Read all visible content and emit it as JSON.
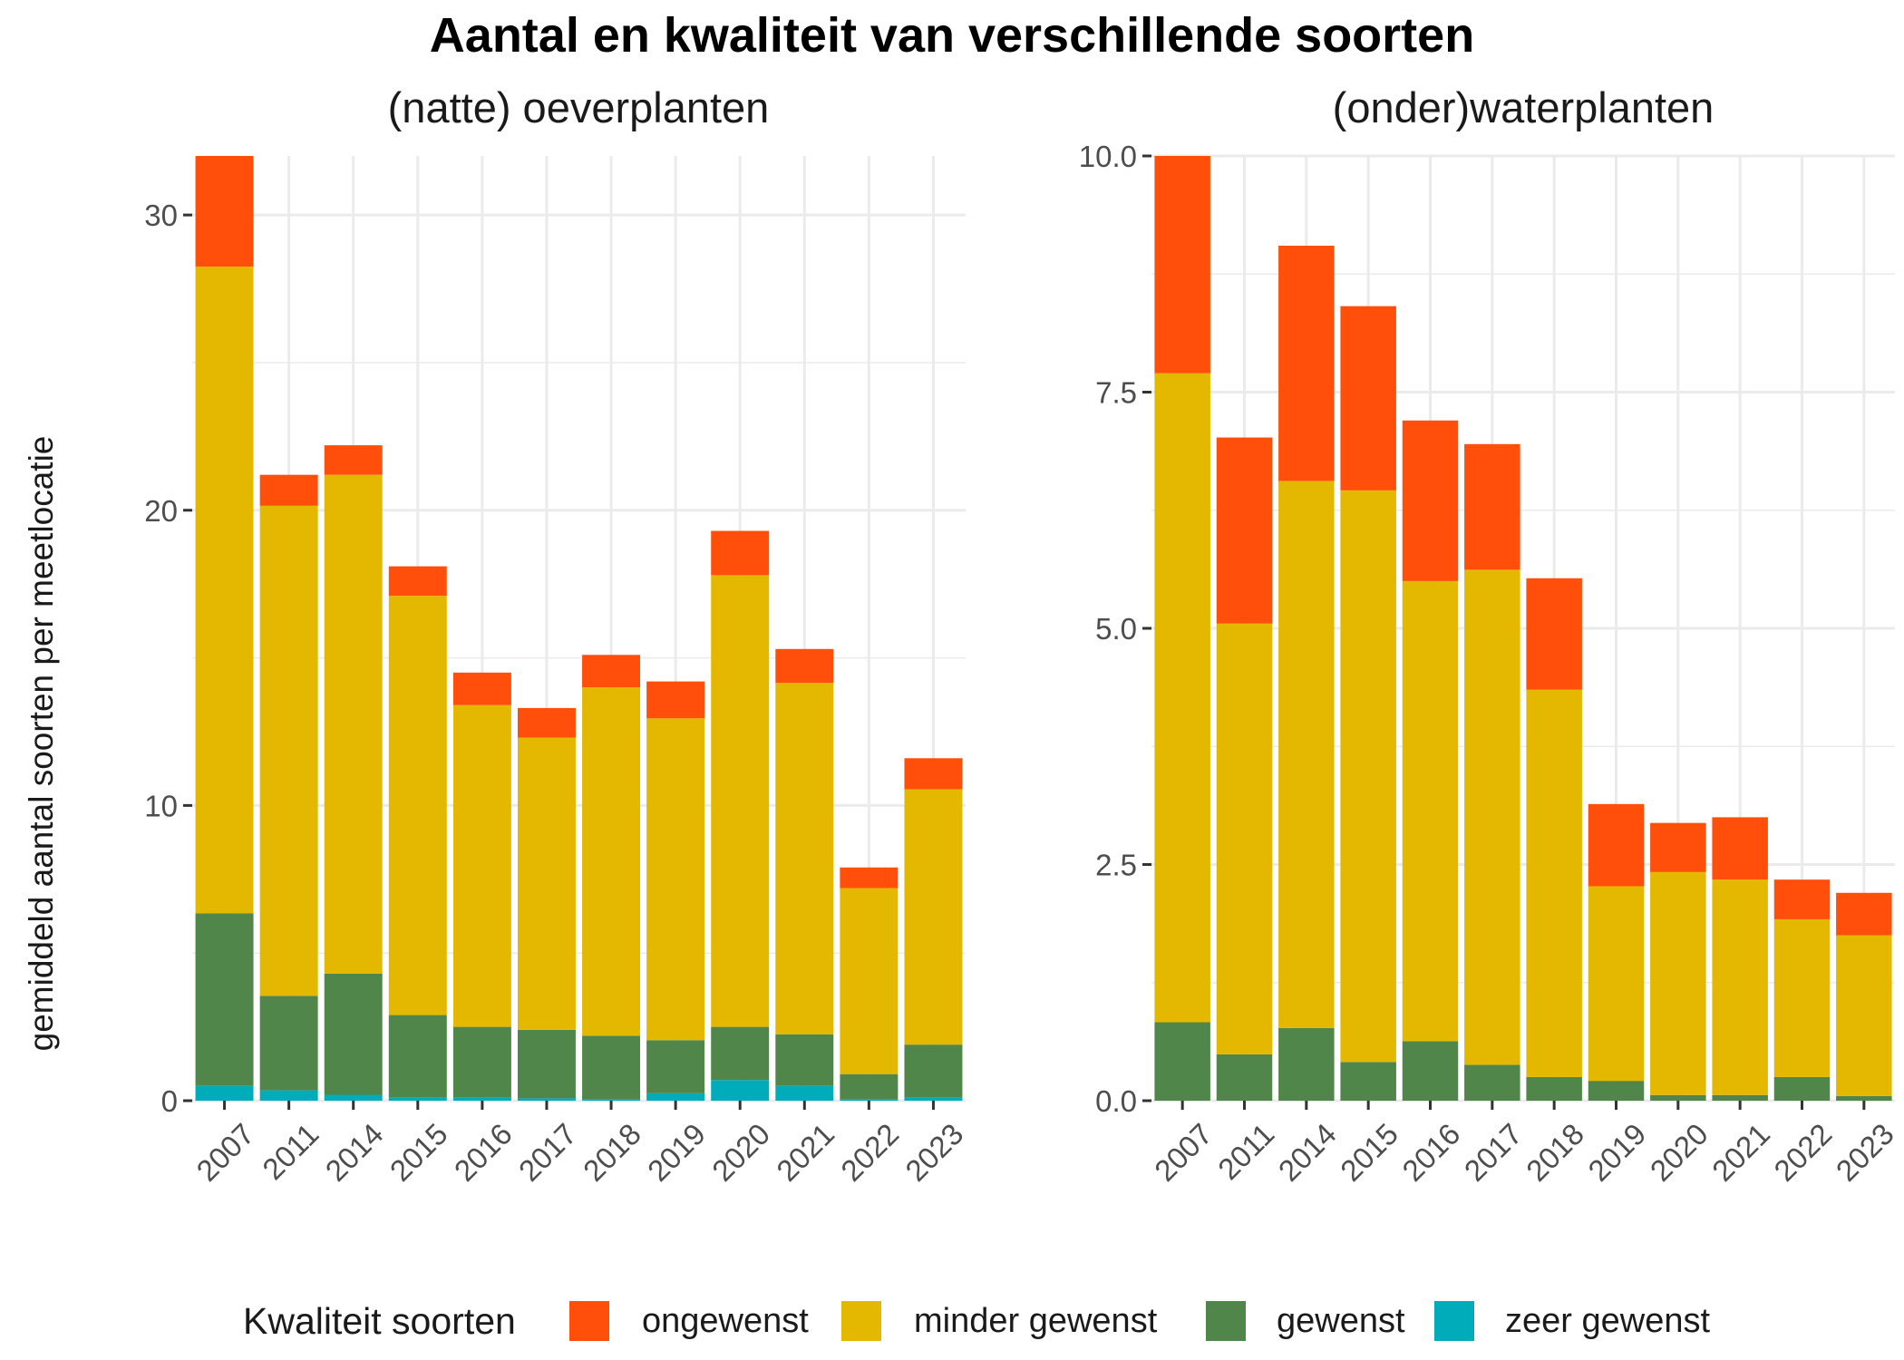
{
  "title": "Aantal en kwaliteit van verschillende soorten",
  "ylabel": "gemiddeld aantal soorten per meetlocatie",
  "legend": {
    "title": "Kwaliteit soorten",
    "entries": [
      {
        "label": "ongewenst",
        "color": "#FF4F0A"
      },
      {
        "label": "minder gewenst",
        "color": "#E5B800"
      },
      {
        "label": "gewenst",
        "color": "#51864B"
      },
      {
        "label": "zeer gewenst",
        "color": "#00ACBA"
      }
    ]
  },
  "chart_data": [
    {
      "type": "bar",
      "stacked": true,
      "title": "(natte) oeverplanten",
      "categories": [
        "2007",
        "2011",
        "2014",
        "2015",
        "2016",
        "2017",
        "2018",
        "2019",
        "2020",
        "2021",
        "2022",
        "2023"
      ],
      "yticks": [
        "0",
        "10",
        "20",
        "30"
      ],
      "ylim": [
        0,
        32
      ],
      "series": [
        {
          "name": "zeer gewenst",
          "color": "#00ACBA",
          "values": [
            0.5,
            0.35,
            0.2,
            0.1,
            0.12,
            0.08,
            0.05,
            0.25,
            0.7,
            0.5,
            0.05,
            0.1
          ]
        },
        {
          "name": "gewenst",
          "color": "#51864B",
          "values": [
            5.85,
            3.2,
            4.1,
            2.8,
            2.38,
            2.32,
            2.15,
            1.8,
            1.8,
            1.75,
            0.85,
            1.8
          ]
        },
        {
          "name": "minder gewenst",
          "color": "#E5B800",
          "values": [
            21.9,
            16.6,
            16.9,
            14.2,
            10.9,
            9.9,
            11.8,
            10.9,
            15.3,
            11.9,
            6.3,
            8.65
          ]
        },
        {
          "name": "ongewenst",
          "color": "#FF4F0A",
          "values": [
            3.75,
            1.05,
            1.0,
            1.0,
            1.1,
            1.0,
            1.1,
            1.25,
            1.5,
            1.15,
            0.7,
            1.05
          ]
        }
      ]
    },
    {
      "type": "bar",
      "stacked": true,
      "title": "(onder)waterplanten",
      "categories": [
        "2007",
        "2011",
        "2014",
        "2015",
        "2016",
        "2017",
        "2018",
        "2019",
        "2020",
        "2021",
        "2022",
        "2023"
      ],
      "yticks": [
        "0.0",
        "2.5",
        "5.0",
        "7.5",
        "10.0"
      ],
      "ylim": [
        0,
        10
      ],
      "series": [
        {
          "name": "zeer gewenst",
          "color": "#00ACBA",
          "values": [
            0,
            0,
            0,
            0,
            0,
            0,
            0,
            0,
            0,
            0,
            0,
            0
          ]
        },
        {
          "name": "gewenst",
          "color": "#51864B",
          "values": [
            0.83,
            0.49,
            0.77,
            0.41,
            0.63,
            0.38,
            0.25,
            0.21,
            0.06,
            0.06,
            0.25,
            0.05
          ]
        },
        {
          "name": "minder gewenst",
          "color": "#E5B800",
          "values": [
            6.87,
            4.56,
            5.79,
            6.05,
            4.87,
            5.24,
            4.1,
            2.06,
            2.36,
            2.28,
            1.67,
            1.7
          ]
        },
        {
          "name": "ongewenst",
          "color": "#FF4F0A",
          "values": [
            2.3,
            1.97,
            2.49,
            1.95,
            1.7,
            1.33,
            1.18,
            0.87,
            0.52,
            0.66,
            0.42,
            0.45
          ]
        }
      ]
    }
  ]
}
